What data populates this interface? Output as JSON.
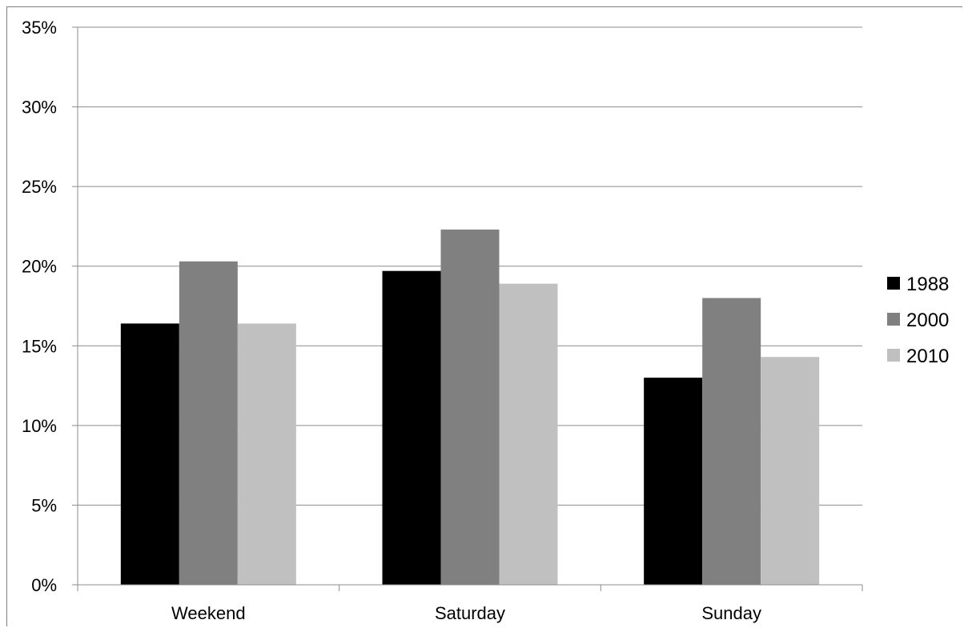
{
  "chart_data": {
    "type": "bar",
    "categories": [
      "Weekend",
      "Saturday",
      "Sunday"
    ],
    "series": [
      {
        "name": "1988",
        "color": "#000000",
        "values": [
          16.4,
          19.7,
          13.0
        ]
      },
      {
        "name": "2000",
        "color": "#808080",
        "values": [
          20.3,
          22.3,
          18.0
        ]
      },
      {
        "name": "2010",
        "color": "#c0c0c0",
        "values": [
          16.4,
          18.9,
          14.3
        ]
      }
    ],
    "y_ticks": [
      "0%",
      "5%",
      "10%",
      "15%",
      "20%",
      "25%",
      "30%",
      "35%"
    ],
    "ylim": [
      0,
      35
    ],
    "y_unit": "%",
    "grid": true,
    "legend_position": "right",
    "title": "",
    "xlabel": "",
    "ylabel": ""
  }
}
